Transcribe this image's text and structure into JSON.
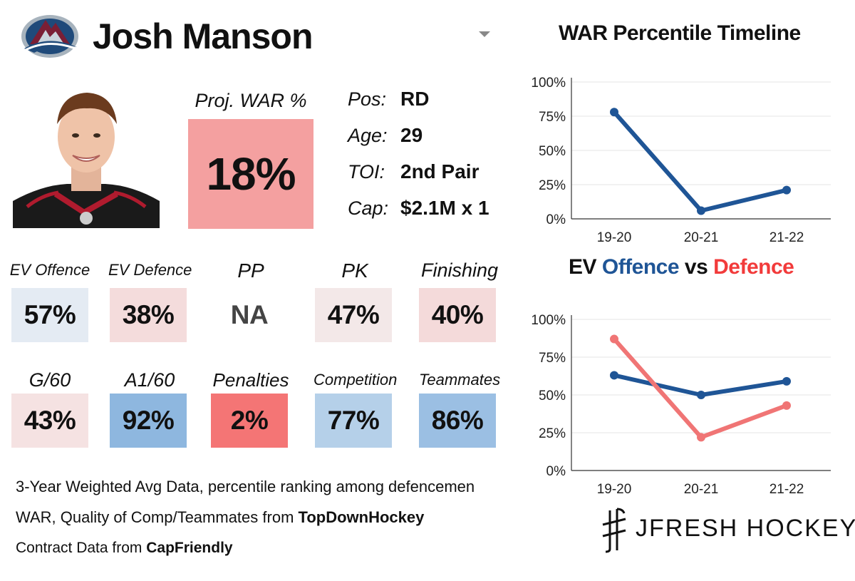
{
  "header": {
    "player_name": "Josh Manson",
    "team_logo_icon": "avalanche-logo-icon",
    "dropdown_icon": "caret-down-icon"
  },
  "projection": {
    "label": "Proj. WAR %",
    "value": "18%",
    "color": "#f4a0a0"
  },
  "info": [
    {
      "label": "Pos:",
      "value": "RD"
    },
    {
      "label": "Age:",
      "value": "29"
    },
    {
      "label": "TOI:",
      "value": "2nd Pair"
    },
    {
      "label": "Cap:",
      "value": "$2.1M x 1"
    }
  ],
  "metrics": [
    {
      "label": "EV Offence",
      "value": "57%",
      "color": "#e4ebf3"
    },
    {
      "label": "EV Defence",
      "value": "38%",
      "color": "#f4dcdc"
    },
    {
      "label": "PP",
      "value": "NA",
      "color": "#ffffff"
    },
    {
      "label": "PK",
      "value": "47%",
      "color": "#f3e8e8"
    },
    {
      "label": "Finishing",
      "value": "40%",
      "color": "#f4dada"
    },
    {
      "label": "G/60",
      "value": "43%",
      "color": "#f5e2e2"
    },
    {
      "label": "A1/60",
      "value": "92%",
      "color": "#8eb7df"
    },
    {
      "label": "Penalties",
      "value": "2%",
      "color": "#f47575"
    },
    {
      "label": "Competition",
      "value": "77%",
      "color": "#b5d0e9"
    },
    {
      "label": "Teammates",
      "value": "86%",
      "color": "#9bbfe3"
    }
  ],
  "footnotes": {
    "line1": "3-Year Weighted Avg Data, percentile ranking among defencemen",
    "line2_prefix": "WAR, Quality of Comp/Teammates from ",
    "line2_bold": "TopDownHockey",
    "line3_prefix": "Contract Data from ",
    "line3_bold": "CapFriendly"
  },
  "chart_data": [
    {
      "type": "line",
      "title": "WAR Percentile Timeline",
      "categories": [
        "19-20",
        "20-21",
        "21-22"
      ],
      "series": [
        {
          "name": "WAR",
          "values": [
            78,
            6,
            21
          ],
          "color": "#1f5596"
        }
      ],
      "yticks": [
        "0%",
        "25%",
        "50%",
        "75%",
        "100%"
      ],
      "ylim": [
        0,
        100
      ],
      "grid": true
    },
    {
      "type": "line",
      "title_parts": [
        "EV ",
        "Offence",
        " vs ",
        "Defence"
      ],
      "title_colors": [
        "#111111",
        "#1f5596",
        "#111111",
        "#f23b3b"
      ],
      "categories": [
        "19-20",
        "20-21",
        "21-22"
      ],
      "series": [
        {
          "name": "Offence",
          "values": [
            63,
            50,
            59
          ],
          "color": "#1f5596"
        },
        {
          "name": "Defence",
          "values": [
            87,
            22,
            43
          ],
          "color": "#f07575"
        }
      ],
      "yticks": [
        "0%",
        "25%",
        "50%",
        "75%",
        "100%"
      ],
      "ylim": [
        0,
        100
      ],
      "grid": true
    }
  ],
  "brand": {
    "name": "JFRESH HOCKEY",
    "icon": "jfresh-logo-icon"
  }
}
